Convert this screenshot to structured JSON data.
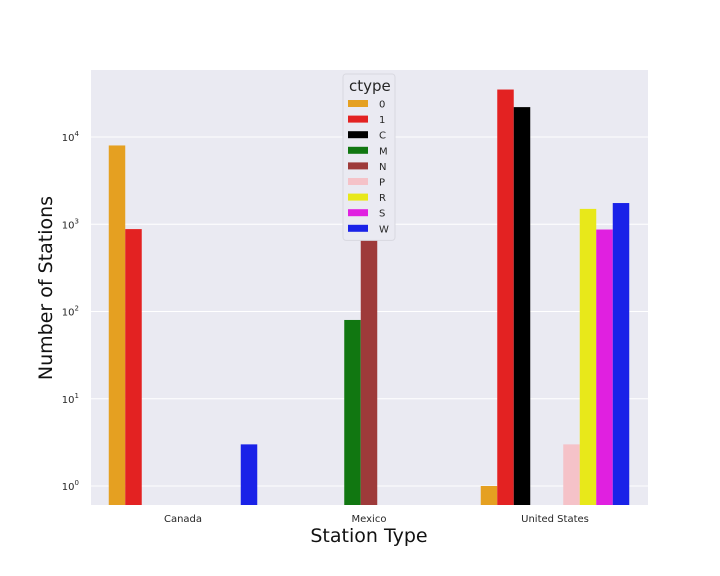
{
  "chart_data": {
    "type": "bar",
    "scale": "log",
    "xlabel": "Station Type",
    "ylabel": "Number of Stations",
    "categories": [
      "Canada",
      "Mexico",
      "United States"
    ],
    "ylim": [
      0.55,
      60000
    ],
    "yticks": [
      {
        "base": "10",
        "exp": "0",
        "value": 1
      },
      {
        "base": "10",
        "exp": "1",
        "value": 10
      },
      {
        "base": "10",
        "exp": "2",
        "value": 100
      },
      {
        "base": "10",
        "exp": "3",
        "value": 1000
      },
      {
        "base": "10",
        "exp": "4",
        "value": 10000
      }
    ],
    "grid": true,
    "legend": {
      "title": "ctype",
      "position": "top-center"
    },
    "series": [
      {
        "name": "0",
        "color": "#e5a021",
        "values": [
          8000,
          null,
          1
        ]
      },
      {
        "name": "1",
        "color": "#e32222",
        "values": [
          880,
          null,
          35000
        ]
      },
      {
        "name": "C",
        "color": "#000000",
        "values": [
          null,
          null,
          22000
        ]
      },
      {
        "name": "M",
        "color": "#117711",
        "values": [
          null,
          80,
          null
        ]
      },
      {
        "name": "N",
        "color": "#9e3a3a",
        "values": [
          null,
          5200,
          null
        ]
      },
      {
        "name": "P",
        "color": "#f5c2c8",
        "values": [
          null,
          null,
          3
        ]
      },
      {
        "name": "R",
        "color": "#e8e81a",
        "values": [
          null,
          null,
          1500
        ]
      },
      {
        "name": "S",
        "color": "#e020e0",
        "values": [
          null,
          null,
          870
        ]
      },
      {
        "name": "W",
        "color": "#1a22e8",
        "values": [
          3,
          null,
          1750
        ]
      }
    ]
  }
}
